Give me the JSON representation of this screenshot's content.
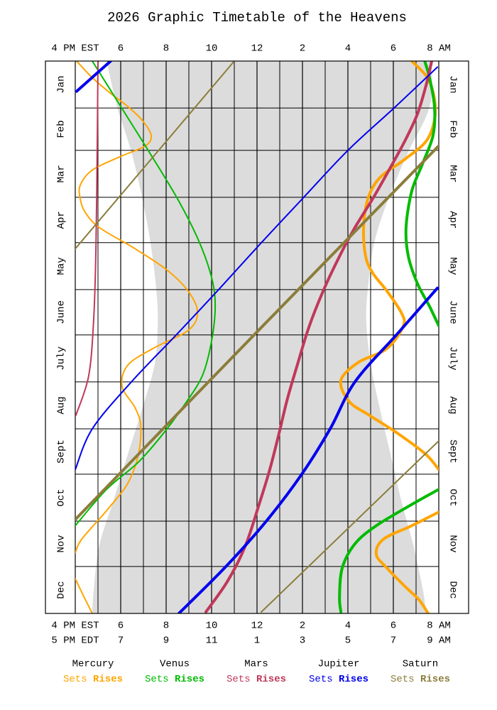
{
  "chart_data": {
    "type": "timetable",
    "title": "2026 Graphic Timetable of the Heavens",
    "xlim": [
      16,
      32
    ],
    "ylim": [
      0,
      365
    ],
    "xticks": [
      {
        "value": 16,
        "label": "4 PM EST"
      },
      {
        "value": 18,
        "label": "6"
      },
      {
        "value": 20,
        "label": "8"
      },
      {
        "value": 22,
        "label": "10"
      },
      {
        "value": 24,
        "label": "12"
      },
      {
        "value": 26,
        "label": "2"
      },
      {
        "value": 28,
        "label": "4"
      },
      {
        "value": 30,
        "label": "6"
      },
      {
        "value": 32,
        "label": "8 AM"
      }
    ],
    "xticks_edt": [
      {
        "value": 16,
        "label": "5 PM EDT"
      },
      {
        "value": 18,
        "label": "7"
      },
      {
        "value": 20,
        "label": "9"
      },
      {
        "value": 22,
        "label": "11"
      },
      {
        "value": 24,
        "label": "1"
      },
      {
        "value": 26,
        "label": "3"
      },
      {
        "value": 28,
        "label": "5"
      },
      {
        "value": 30,
        "label": "7"
      },
      {
        "value": 32,
        "label": "9 AM"
      }
    ],
    "minor_xticks": [
      17,
      19,
      21,
      23,
      25,
      27,
      29,
      31
    ],
    "yticks": [
      0,
      31,
      59,
      90,
      120,
      151,
      181,
      212,
      243,
      273,
      304,
      334,
      365
    ],
    "months": [
      "Jan",
      "Feb",
      "Mar",
      "Apr",
      "May",
      "June",
      "July",
      "Aug",
      "Sept",
      "Oct",
      "Nov",
      "Dec"
    ],
    "twilight": {
      "color": "#dcdcdc",
      "x": [
        0,
        30,
        60,
        90,
        120,
        150,
        172,
        200,
        230,
        260,
        290,
        320,
        350,
        365
      ],
      "dusk": [
        17.38,
        17.84,
        18.47,
        18.94,
        19.31,
        19.56,
        19.63,
        19.5,
        18.94,
        18.31,
        17.69,
        17.06,
        16.81,
        16.75
      ],
      "dawn": [
        31.69,
        31.6,
        30.66,
        29.81,
        29.16,
        28.88,
        28.81,
        29.0,
        29.41,
        29.88,
        30.34,
        30.88,
        31.31,
        31.44
      ]
    },
    "series": [
      {
        "planet": "Mercury",
        "name": "Sets",
        "color": "#ffa500",
        "width": 2,
        "x": [
          0,
          11,
          21,
          30,
          39,
          49,
          56,
          63,
          72,
          82,
          91,
          100,
          110,
          124,
          138,
          152,
          166,
          178,
          190,
          201,
          215,
          229,
          241,
          260,
          279,
          297,
          316,
          325,
          330,
          342,
          354,
          365
        ],
        "values": [
          16.06,
          16.75,
          17.53,
          18.31,
          18.94,
          19.34,
          19.09,
          18.0,
          16.75,
          16.22,
          16.22,
          16.44,
          17.06,
          18.63,
          20.03,
          20.97,
          21.38,
          20.97,
          19.41,
          18.31,
          18.06,
          18.63,
          18.88,
          18.78,
          18.31,
          17.38,
          16.28,
          16.0,
          null,
          16.0,
          16.38,
          16.75
        ]
      },
      {
        "planet": "Mercury",
        "name": "Rises",
        "color": "#ffa500",
        "width": 4,
        "x": [
          0,
          11,
          25,
          39,
          53,
          65,
          77,
          91,
          110,
          129,
          140,
          152,
          166,
          175,
          190,
          199,
          211,
          225,
          234,
          246,
          260,
          270,
          285,
          298,
          307,
          316,
          326,
          335,
          347,
          356,
          365
        ],
        "values": [
          30.81,
          31.5,
          31.81,
          31.81,
          31.44,
          30.5,
          29.41,
          28.88,
          28.69,
          28.78,
          29.09,
          29.72,
          30.34,
          30.44,
          29.72,
          28.47,
          27.69,
          28.06,
          28.94,
          30.19,
          31.44,
          32.0,
          null,
          32.0,
          30.81,
          29.56,
          29.25,
          29.72,
          30.5,
          31.13,
          31.53
        ]
      },
      {
        "planet": "Venus",
        "name": "Sets",
        "color": "#00bb00",
        "width": 2,
        "x": [
          0,
          30,
          60,
          91,
          119,
          143,
          162,
          185,
          208,
          227,
          246,
          265,
          283,
          307
        ],
        "values": [
          16.75,
          18.0,
          19.25,
          20.5,
          21.44,
          22.0,
          22.16,
          22.0,
          21.59,
          20.81,
          19.88,
          18.78,
          17.38,
          16.0
        ]
      },
      {
        "planet": "Venus",
        "name": "Rises",
        "color": "#00bb00",
        "width": 4,
        "x": [
          0,
          11,
          30,
          49,
          68,
          86,
          110,
          129,
          147,
          162,
          175,
          230,
          283,
          293,
          307,
          319,
          335,
          354,
          364
        ],
        "values": [
          31.38,
          31.59,
          31.81,
          31.75,
          31.28,
          30.81,
          30.56,
          30.66,
          31.06,
          31.59,
          32.0,
          null,
          32.0,
          30.81,
          29.25,
          28.31,
          27.75,
          27.63,
          27.69
        ]
      },
      {
        "planet": "Mars",
        "name": "Sets",
        "color": "#c0385a",
        "width": 2,
        "x": [
          0,
          53,
          124,
          171,
          208,
          234
        ],
        "values": [
          17.0,
          16.97,
          16.91,
          16.81,
          16.59,
          16.03
        ]
      },
      {
        "planet": "Mars",
        "name": "Rises",
        "color": "#c0385a",
        "width": 4,
        "x": [
          0,
          16,
          35,
          53,
          72,
          91,
          110,
          129,
          152,
          176,
          199,
          223,
          246,
          270,
          293,
          321,
          344,
          364
        ],
        "values": [
          31.69,
          31.44,
          31.06,
          30.5,
          29.81,
          29.09,
          28.31,
          27.63,
          26.91,
          26.28,
          25.81,
          25.34,
          24.97,
          24.56,
          24.09,
          23.47,
          22.69,
          21.75
        ]
      },
      {
        "planet": "Jupiter",
        "name": "Sets",
        "color": "#0000ee",
        "width": 2,
        "x": [
          4,
          31,
          59,
          90,
          120,
          151,
          181,
          212,
          243,
          270
        ],
        "values": [
          31.94,
          30.03,
          28.0,
          26.06,
          24.19,
          22.31,
          20.44,
          18.47,
          16.75,
          16.0
        ]
      },
      {
        "planet": "Jupiter",
        "name": "Rises",
        "color": "#0000ee",
        "width": 4,
        "x": [
          0,
          20,
          80,
          150,
          180,
          212,
          243,
          273,
          304,
          334,
          365
        ],
        "values": [
          17.56,
          16.06,
          null,
          31.94,
          30.19,
          28.31,
          27.22,
          25.97,
          24.41,
          22.63,
          20.56
        ]
      },
      {
        "planet": "Saturn",
        "name": "Sets",
        "color": "#8b7d3a",
        "width": 2,
        "x": [
          0,
          124,
          190,
          251,
          364
        ],
        "values": [
          23.0,
          16.0,
          null,
          32.0,
          24.19
        ]
      },
      {
        "planet": "Saturn",
        "name": "Rises",
        "color": "#8b7d3a",
        "width": 4,
        "x": [
          56,
          180,
          303
        ],
        "values": [
          32.0,
          23.93,
          16.0
        ]
      }
    ]
  }
}
